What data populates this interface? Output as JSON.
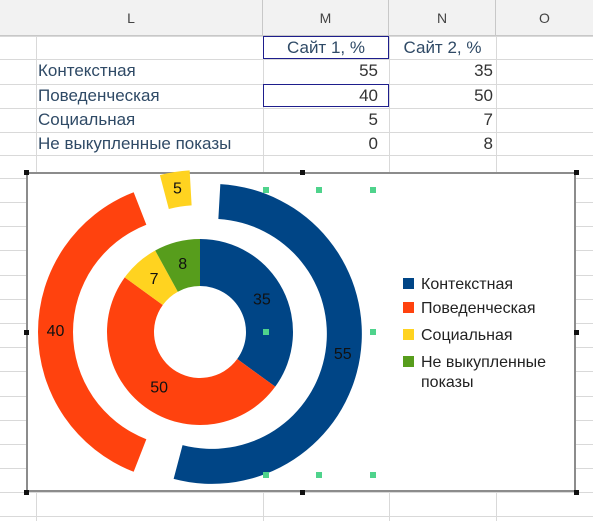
{
  "spreadsheet": {
    "columns": [
      "L",
      "M",
      "N",
      "O"
    ],
    "header_row": {
      "m": "Сайт 1, %",
      "n": "Сайт 2, %"
    },
    "rows": [
      {
        "label": "Контекстная",
        "m": "55",
        "n": "35"
      },
      {
        "label": "Поведенческая",
        "m": "40",
        "n": "50"
      },
      {
        "label": "Социальная",
        "m": "5",
        "n": "7"
      },
      {
        "label": " Не выкупленные показы",
        "m": "0",
        "n": "8"
      }
    ]
  },
  "chart_data": {
    "type": "donut",
    "categories": [
      "Контекстная",
      "Поведенческая",
      "Социальная",
      "Не выкупленные показы"
    ],
    "series": [
      {
        "name": "Сайт 1, %",
        "ring": "outer",
        "values": [
          55,
          40,
          5,
          0
        ]
      },
      {
        "name": "Сайт 2, %",
        "ring": "inner",
        "values": [
          35,
          50,
          7,
          8
        ]
      }
    ],
    "colors": [
      "#004586",
      "#ff420e",
      "#ffd320",
      "#579d1c"
    ],
    "legend": {
      "placement": "right",
      "entries": [
        "Контекстная",
        "Поведенческая",
        "Социальная",
        "Не выкупленные показы"
      ]
    },
    "title": ""
  }
}
